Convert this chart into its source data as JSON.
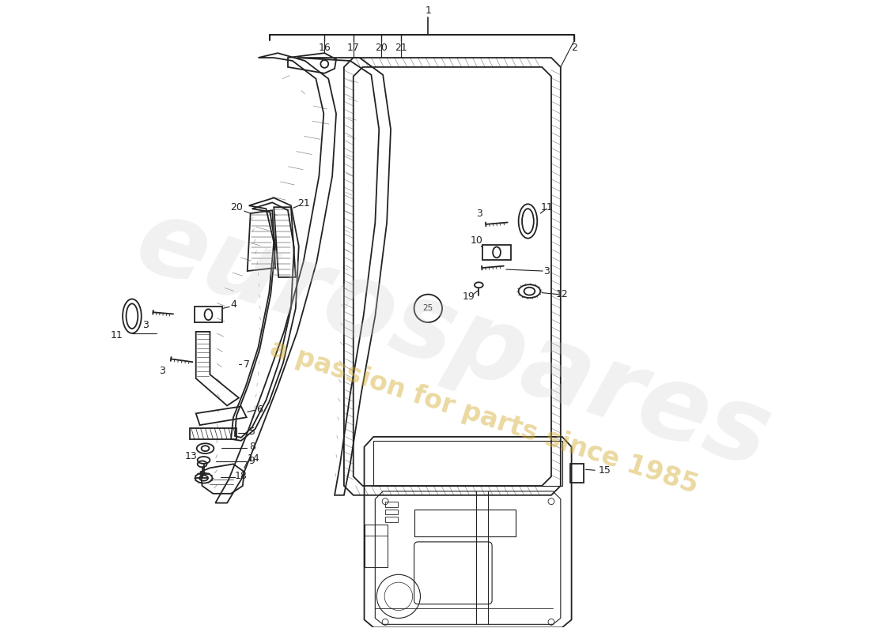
{
  "background_color": "#ffffff",
  "line_color": "#222222",
  "watermark1": "eurospares",
  "watermark2": "a passion for parts since 1985",
  "wm_color1": "#cccccc",
  "wm_color2": "#d4aa30"
}
